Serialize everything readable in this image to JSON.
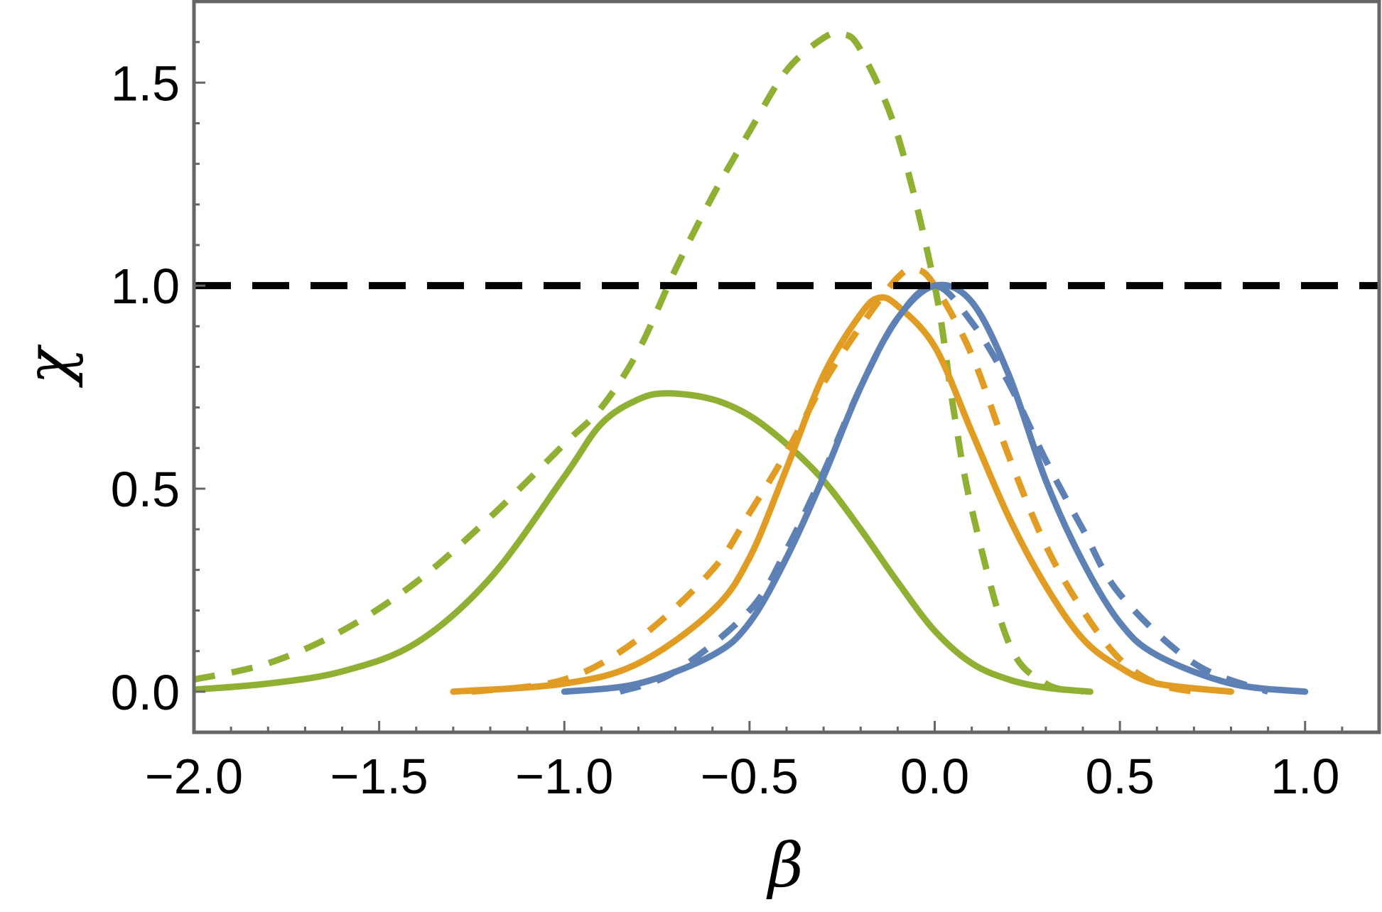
{
  "chart_data": {
    "type": "line",
    "xlabel": "β",
    "ylabel": "χ",
    "xlim": [
      -2.0,
      1.2
    ],
    "ylim": [
      -0.1,
      1.7
    ],
    "x_ticks": [
      -2.0,
      -1.5,
      -1.0,
      -0.5,
      0.0,
      0.5,
      1.0
    ],
    "x_tick_labels": [
      "−2.0",
      "−1.5",
      "−1.0",
      "−0.5",
      "0.0",
      "0.5",
      "1.0"
    ],
    "y_ticks": [
      0.0,
      0.5,
      1.0,
      1.5
    ],
    "y_tick_labels": [
      "0.0",
      "0.5",
      "1.0",
      "1.5"
    ],
    "grid": false,
    "legend": "none",
    "reference_lines": [
      {
        "orientation": "horizontal",
        "y": 1.0,
        "style": "dashed",
        "color": "#000000"
      }
    ],
    "series": [
      {
        "color": "#5e81b5",
        "style": "solid",
        "x": [
          -1.0,
          -0.8,
          -0.6,
          -0.5,
          -0.4,
          -0.3,
          -0.2,
          -0.1,
          0.0,
          0.1,
          0.2,
          0.3,
          0.4,
          0.5,
          0.6,
          0.8,
          1.0
        ],
        "y": [
          0.0,
          0.02,
          0.09,
          0.17,
          0.33,
          0.53,
          0.75,
          0.92,
          1.0,
          0.96,
          0.78,
          0.52,
          0.32,
          0.17,
          0.09,
          0.02,
          0.0
        ]
      },
      {
        "color": "#5e81b5",
        "style": "dashed",
        "x": [
          -0.85,
          -0.7,
          -0.5,
          -0.4,
          -0.3,
          -0.2,
          -0.1,
          0.0,
          0.1,
          0.2,
          0.3,
          0.4,
          0.5,
          0.7,
          0.9
        ],
        "y": [
          0.0,
          0.05,
          0.2,
          0.35,
          0.54,
          0.75,
          0.92,
          1.0,
          0.91,
          0.76,
          0.57,
          0.4,
          0.24,
          0.07,
          0.0
        ]
      },
      {
        "color": "#e19c24",
        "style": "solid",
        "x": [
          -1.3,
          -1.0,
          -0.8,
          -0.6,
          -0.5,
          -0.4,
          -0.3,
          -0.2,
          -0.15,
          -0.1,
          0.0,
          0.1,
          0.2,
          0.3,
          0.4,
          0.5,
          0.6,
          0.8
        ],
        "y": [
          0.0,
          0.02,
          0.07,
          0.2,
          0.33,
          0.55,
          0.78,
          0.93,
          0.97,
          0.95,
          0.85,
          0.64,
          0.43,
          0.26,
          0.13,
          0.06,
          0.02,
          0.0
        ]
      },
      {
        "color": "#e19c24",
        "style": "dashed",
        "x": [
          -1.25,
          -1.0,
          -0.8,
          -0.6,
          -0.5,
          -0.4,
          -0.3,
          -0.2,
          -0.1,
          -0.05,
          0.0,
          0.1,
          0.2,
          0.3,
          0.4,
          0.5,
          0.6,
          0.7
        ],
        "y": [
          0.0,
          0.03,
          0.13,
          0.3,
          0.44,
          0.59,
          0.76,
          0.9,
          1.02,
          1.04,
          1.0,
          0.83,
          0.58,
          0.36,
          0.2,
          0.08,
          0.02,
          0.0
        ]
      },
      {
        "color": "#8fb032",
        "style": "solid",
        "x": [
          -2.0,
          -1.8,
          -1.6,
          -1.4,
          -1.2,
          -1.0,
          -0.9,
          -0.8,
          -0.72,
          -0.6,
          -0.5,
          -0.4,
          -0.3,
          -0.2,
          -0.1,
          0.0,
          0.1,
          0.2,
          0.3,
          0.42
        ],
        "y": [
          0.005,
          0.02,
          0.05,
          0.12,
          0.28,
          0.53,
          0.66,
          0.72,
          0.735,
          0.72,
          0.68,
          0.61,
          0.52,
          0.4,
          0.27,
          0.15,
          0.07,
          0.03,
          0.01,
          0.0
        ]
      },
      {
        "color": "#8fb032",
        "style": "dashed",
        "x": [
          -2.0,
          -1.8,
          -1.6,
          -1.4,
          -1.2,
          -1.0,
          -0.9,
          -0.8,
          -0.7,
          -0.6,
          -0.5,
          -0.4,
          -0.3,
          -0.25,
          -0.2,
          -0.1,
          0.0,
          0.05,
          0.1,
          0.2,
          0.3,
          0.4
        ],
        "y": [
          0.03,
          0.07,
          0.15,
          0.27,
          0.43,
          0.61,
          0.7,
          0.84,
          1.04,
          1.22,
          1.38,
          1.53,
          1.61,
          1.62,
          1.58,
          1.37,
          1.0,
          0.7,
          0.45,
          0.12,
          0.02,
          0.0
        ]
      }
    ]
  }
}
